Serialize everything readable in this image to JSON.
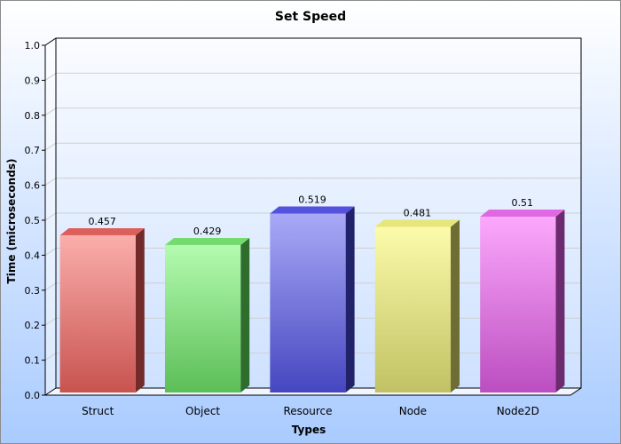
{
  "chart_data": {
    "type": "bar",
    "title": "Set Speed",
    "xlabel": "Types",
    "ylabel": "Time (microseconds)",
    "categories": [
      "Struct",
      "Object",
      "Resource",
      "Node",
      "Node2D"
    ],
    "values": [
      0.457,
      0.429,
      0.519,
      0.481,
      0.51
    ],
    "value_labels": [
      "0.457",
      "0.429",
      "0.519",
      "0.481",
      "0.51"
    ],
    "ylim": [
      0,
      1.0
    ],
    "yticks": [
      "0.0",
      "0.1",
      "0.2",
      "0.3",
      "0.4",
      "0.5",
      "0.6",
      "0.7",
      "0.8",
      "0.9",
      "1.0"
    ],
    "grid": true,
    "legend": "none",
    "style": "3d-bars",
    "colors": {
      "background_top": "#ffffff",
      "background_bottom": "#a9cbff",
      "bars": [
        {
          "light": "#fbaeac",
          "dark": "#c8534f",
          "side": "#722b29",
          "top": "#dd5f5c"
        },
        {
          "light": "#b4fbb0",
          "dark": "#5cbe57",
          "side": "#2f6d2c",
          "top": "#74dc6f"
        },
        {
          "light": "#a9a9f7",
          "dark": "#4646c0",
          "side": "#22226b",
          "top": "#5252dd"
        },
        {
          "light": "#fbfbaa",
          "dark": "#c1c164",
          "side": "#6d6d34",
          "top": "#e6e67a"
        },
        {
          "light": "#fca8fc",
          "dark": "#bb4ec0",
          "side": "#6c2b6f",
          "top": "#e069e3"
        }
      ]
    }
  }
}
